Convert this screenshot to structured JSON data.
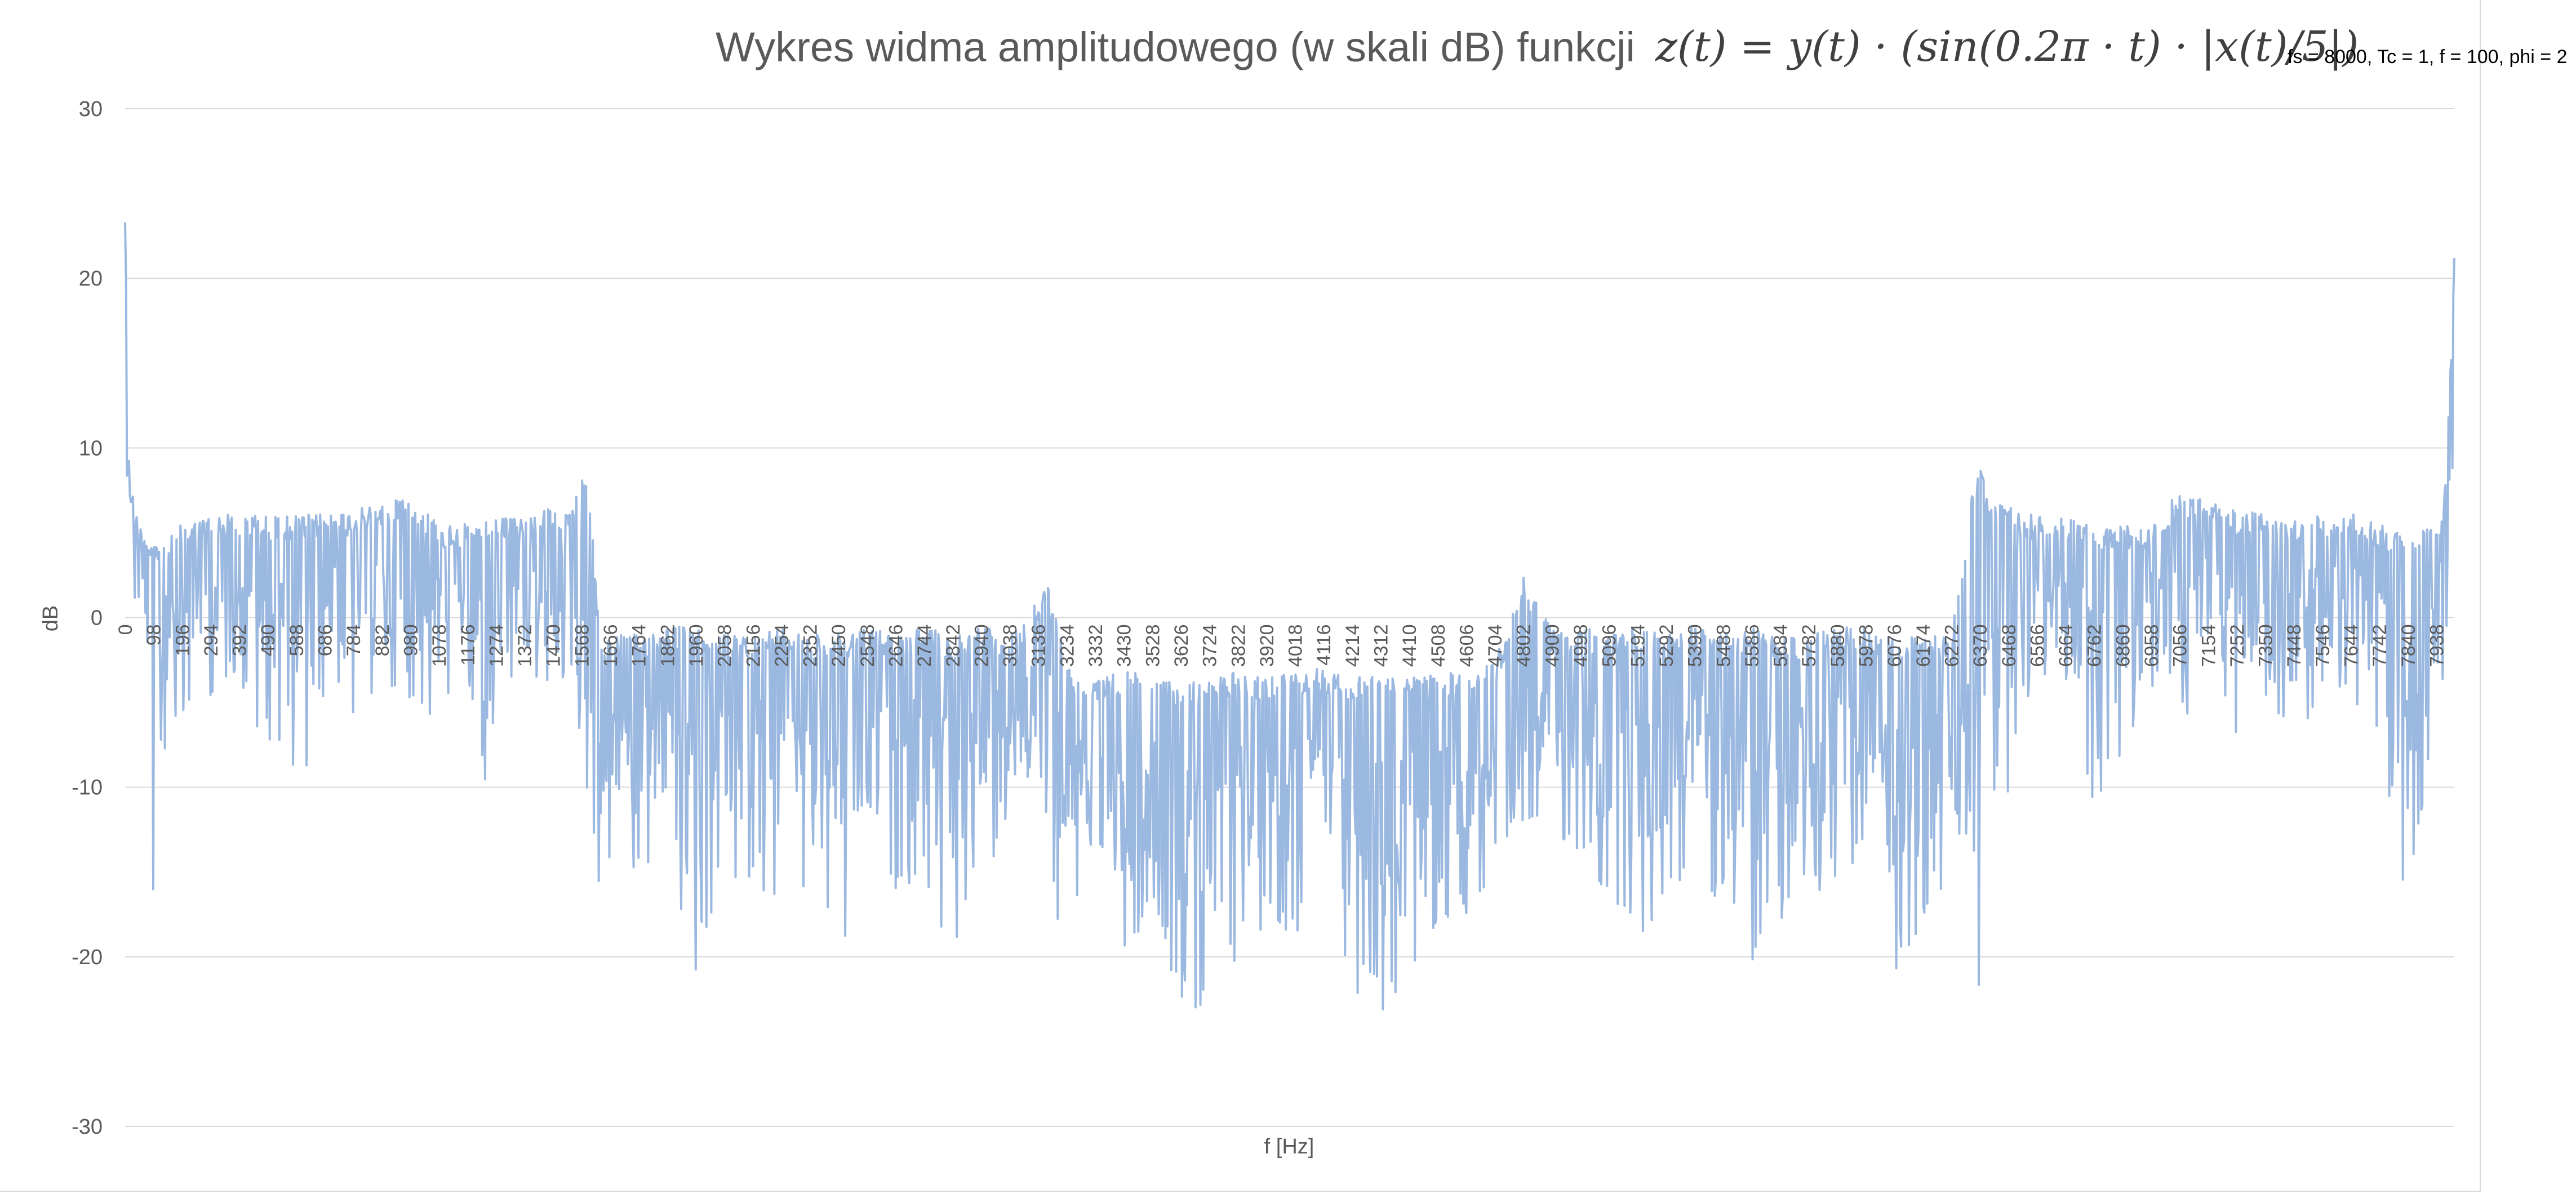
{
  "chart_data": {
    "type": "line",
    "title": "Wykres widma amplitudowego (w skali dB) funkcji",
    "title_formula": "z(t) = y(t) · (sin(0.2π · t) · |x(t)/5|)",
    "subtitle": "fs = 8000, Tc = 1, f = 100, phi = 2",
    "xlabel": "f [Hz]",
    "ylabel": "dB",
    "ylim": [
      -30,
      30
    ],
    "yticks": [
      30,
      20,
      10,
      0,
      -10,
      -20,
      -30
    ],
    "ytick_labels": [
      "30",
      "20",
      "10",
      "0",
      "-10",
      "-20",
      "-30"
    ],
    "xlim": [
      0,
      7999
    ],
    "xtick_labels": [
      "0",
      "98",
      "196",
      "294",
      "392",
      "490",
      "588",
      "686",
      "784",
      "882",
      "980",
      "1078",
      "1176",
      "1274",
      "1372",
      "1470",
      "1568",
      "1666",
      "1764",
      "1862",
      "1960",
      "2058",
      "2156",
      "2254",
      "2352",
      "2450",
      "2548",
      "2646",
      "2744",
      "2842",
      "2940",
      "3038",
      "3136",
      "3234",
      "3332",
      "3430",
      "3528",
      "3626",
      "3724",
      "3822",
      "3920",
      "4018",
      "4116",
      "4214",
      "4312",
      "4410",
      "4508",
      "4606",
      "4704",
      "4802",
      "4900",
      "4998",
      "5096",
      "5194",
      "5292",
      "5390",
      "5488",
      "5586",
      "5684",
      "5782",
      "5880",
      "5978",
      "6076",
      "6174",
      "6272",
      "6370",
      "6468",
      "6566",
      "6664",
      "6762",
      "6860",
      "6958",
      "7056",
      "7154",
      "7252",
      "7350",
      "7448",
      "7546",
      "7644",
      "7742",
      "7840",
      "7938"
    ],
    "grid": true,
    "legend": "none",
    "series": [
      {
        "color": "#9ab8e0",
        "x": [
          0,
          20,
          50,
          98,
          150,
          196,
          300,
          392,
          490,
          588,
          686,
          784,
          882,
          980,
          1078,
          1176,
          1274,
          1372,
          1470,
          1540,
          1568,
          1600,
          1630,
          1666,
          1764,
          1862,
          1960,
          2058,
          2156,
          2254,
          2352,
          2450,
          2548,
          2646,
          2744,
          2842,
          2940,
          3038,
          3136,
          3160,
          3200,
          3234,
          3332,
          3430,
          3528,
          3626,
          3724,
          3822,
          3920,
          4018,
          4116,
          4214,
          4312,
          4410,
          4508,
          4606,
          4704,
          4760,
          4802,
          4900,
          4998,
          5096,
          5194,
          5292,
          5390,
          5488,
          5586,
          5684,
          5782,
          5880,
          5978,
          6076,
          6174,
          6272,
          6340,
          6370,
          6400,
          6468,
          6566,
          6664,
          6762,
          6860,
          6958,
          7056,
          7154,
          7252,
          7350,
          7448,
          7546,
          7644,
          7742,
          7840,
          7938,
          7970,
          7999
        ],
        "upper": [
          23.3,
          8.0,
          5.5,
          4.5,
          5.0,
          5.5,
          6.0,
          6.2,
          6.0,
          6.0,
          6.2,
          6.3,
          6.8,
          7.5,
          5.5,
          5.5,
          5.8,
          6.0,
          6.5,
          7.0,
          9.0,
          7.0,
          -1.5,
          -1.0,
          -1.0,
          -0.5,
          -0.5,
          -1.0,
          -1.0,
          -0.5,
          -1.0,
          -1.0,
          -0.5,
          -1.0,
          -0.5,
          -1.0,
          -0.5,
          -1.0,
          1.0,
          2.5,
          0.0,
          -3.0,
          -3.5,
          -3.0,
          -3.5,
          -4.0,
          -3.5,
          -3.0,
          -3.5,
          -3.0,
          -3.0,
          -3.5,
          -3.0,
          -3.0,
          -3.5,
          -3.0,
          -2.5,
          0.0,
          2.5,
          -0.5,
          -0.5,
          -1.0,
          -0.5,
          -1.0,
          -0.5,
          -1.0,
          -0.5,
          -1.0,
          -1.0,
          -0.5,
          -0.5,
          -1.0,
          -1.0,
          -1.0,
          7.0,
          9.0,
          7.0,
          6.5,
          6.0,
          5.8,
          5.5,
          5.5,
          5.5,
          7.5,
          6.8,
          6.3,
          6.2,
          6.0,
          6.0,
          6.2,
          5.5,
          5.0,
          5.5,
          8.0,
          21.2
        ],
        "lower": [
          10.0,
          0.0,
          -3.0,
          -17.5,
          -5.0,
          -7.0,
          -5.0,
          -5.0,
          -8.0,
          -11.0,
          -5.0,
          -7.5,
          -5.0,
          -7.0,
          -6.0,
          -8.0,
          -10.8,
          -6.0,
          -5.0,
          -5.0,
          -10.5,
          -10.5,
          -22.0,
          -15.0,
          -16.0,
          -18.0,
          -21.2,
          -15.0,
          -16.0,
          -17.0,
          -18.0,
          -20.5,
          -16.0,
          -17.0,
          -16.0,
          -20.5,
          -15.0,
          -14.0,
          -12.0,
          -17.0,
          -18.0,
          -16.0,
          -17.0,
          -21.0,
          -18.0,
          -22.5,
          -23.5,
          -20.0,
          -18.0,
          -19.0,
          -20.0,
          -22.0,
          -23.5,
          -22.5,
          -20.0,
          -18.0,
          -17.0,
          -18.0,
          -12.0,
          -14.0,
          -15.0,
          -16.0,
          -20.5,
          -17.0,
          -16.0,
          -17.0,
          -20.5,
          -18.0,
          -17.0,
          -16.0,
          -15.0,
          -21.0,
          -18.0,
          -16.0,
          -22.0,
          -22.0,
          -10.5,
          -10.5,
          -5.0,
          -5.0,
          -11.0,
          -8.0,
          -6.0,
          -7.0,
          -5.0,
          -7.5,
          -5.0,
          -8.0,
          -5.0,
          -5.0,
          -7.0,
          -17.5,
          -5.0,
          -3.0,
          10.0
        ]
      }
    ]
  }
}
